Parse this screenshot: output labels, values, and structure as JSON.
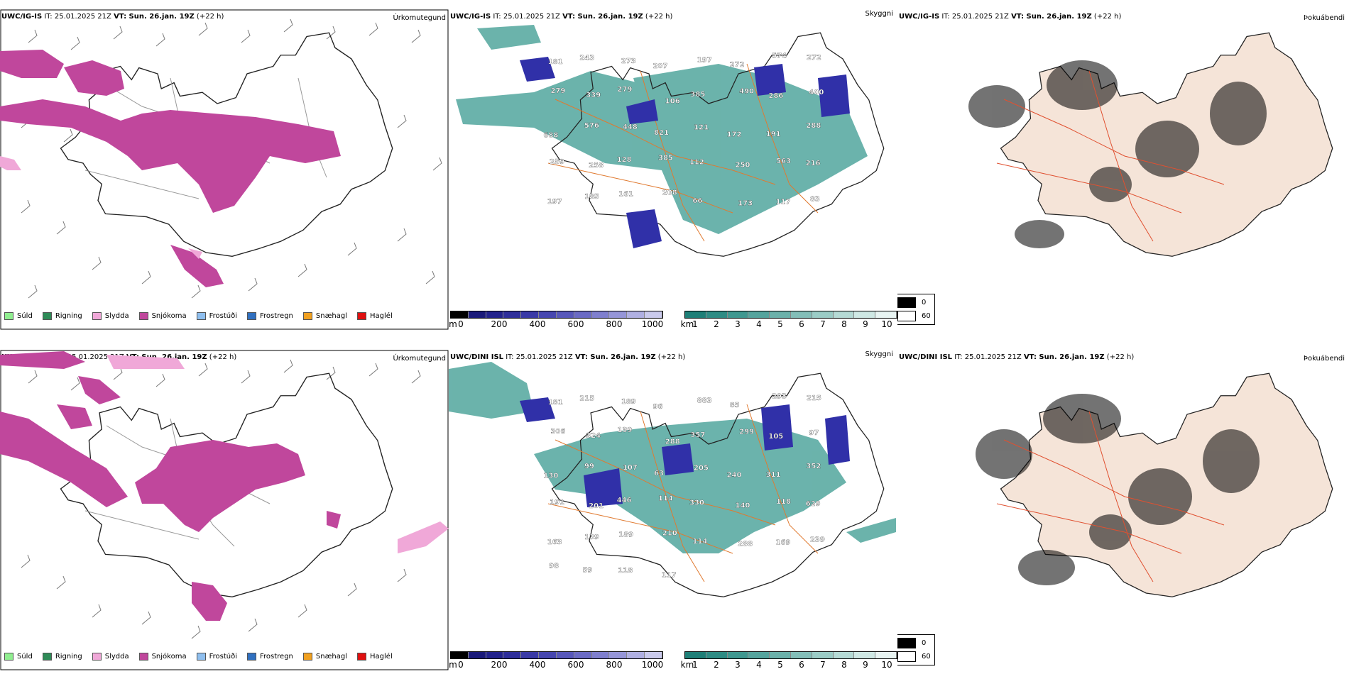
{
  "rows": [
    {
      "model_label": "UWC/IG-IS",
      "it_label": "IT: 25.01.2025 21Z",
      "vt_label": "VT: Sun. 26.jan. 19Z",
      "lead_label": "(+22 h)",
      "precip_field_label": "Úrkomutegund",
      "cloud_field_label": "Skyggni",
      "fog_field_label": "Þokuábendi",
      "cloud_numbers": [
        "181",
        "243",
        "273",
        "207",
        "197",
        "272",
        "574",
        "272",
        "279",
        "339",
        "279",
        "106",
        "385",
        "490",
        "286",
        "400",
        "688",
        "576",
        "448",
        "821",
        "121",
        "172",
        "191",
        "288",
        "259",
        "258",
        "128",
        "385",
        "112",
        "250",
        "563",
        "216",
        "197",
        "185",
        "161",
        "208",
        "66",
        "173",
        "117",
        "83"
      ]
    },
    {
      "model_label": "UWC/DINI ISL",
      "it_label": "IT: 25.01.2025 21Z",
      "vt_label": "VT: Sun. 26.jan. 19Z",
      "lead_label": "(+22 h)",
      "precip_field_label": "Úrkomutegund",
      "cloud_field_label": "Skyggni",
      "fog_field_label": "Þokuábendi",
      "cloud_numbers": [
        "181",
        "215",
        "189",
        "96",
        "883",
        "85",
        "293",
        "215",
        "306",
        "324",
        "139",
        "288",
        "357",
        "299",
        "105",
        "97",
        "130",
        "99",
        "107",
        "63",
        "205",
        "240",
        "311",
        "352",
        "191",
        "201",
        "446",
        "114",
        "330",
        "140",
        "118",
        "629",
        "163",
        "139",
        "189",
        "210",
        "114",
        "288",
        "169",
        "239",
        "98",
        "59",
        "118",
        "117"
      ]
    }
  ],
  "precip_legend": [
    {
      "label": "Súld",
      "color": "#90ee90"
    },
    {
      "label": "Rigning",
      "color": "#2e8b57"
    },
    {
      "label": "Slydda",
      "color": "#f0a8d8"
    },
    {
      "label": "Snjókoma",
      "color": "#c0479c"
    },
    {
      "label": "Frostúði",
      "color": "#8fbfef"
    },
    {
      "label": "Frostregn",
      "color": "#3070c0"
    },
    {
      "label": "Snæhagl",
      "color": "#f0a020"
    },
    {
      "label": "Haglél",
      "color": "#e01010"
    }
  ],
  "cloud_base_bar": {
    "unit": "m",
    "ticks": [
      "0",
      "200",
      "400",
      "600",
      "800",
      "1000"
    ],
    "colors": [
      "#000000",
      "#1a1a7a",
      "#22228c",
      "#2e2e9a",
      "#3a3aa6",
      "#4747b0",
      "#5757ba",
      "#6a6ac4",
      "#7f7fce",
      "#9696d8",
      "#b0b0e2",
      "#cacaec"
    ]
  },
  "visibility_bar": {
    "unit": "km",
    "ticks": [
      "1",
      "2",
      "3",
      "4",
      "5",
      "6",
      "7",
      "8",
      "9",
      "10"
    ],
    "colors": [
      "#1e7f77",
      "#2e8c84",
      "#3f9890",
      "#55a49d",
      "#6bb1aa",
      "#83beb8",
      "#9bccc6",
      "#b5dad5",
      "#cfe8e4",
      "#e8f4f2"
    ]
  },
  "fog_legend": [
    {
      "label": "0",
      "color": "#000000"
    },
    {
      "label": "60",
      "color": "#ffffff"
    }
  ],
  "colors": {
    "snow": "#c0479c",
    "sleet": "#f0a8d8",
    "vis": "#3a9a90",
    "base": "#3030a8",
    "coast": "#222222",
    "roads": "#e07a30",
    "land": "#f5e4d8"
  }
}
